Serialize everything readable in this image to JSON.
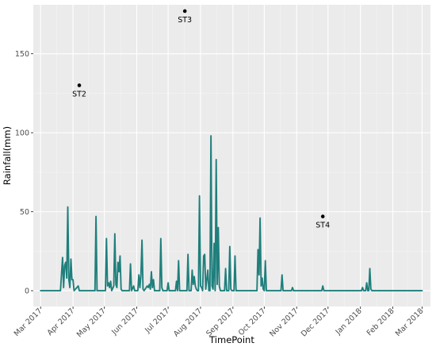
{
  "chart_data": {
    "type": "line",
    "xlabel": "TimePoint",
    "ylabel": "Rainfall(mm)",
    "ylim": [
      -10,
      181
    ],
    "yticks": [
      0,
      50,
      100,
      150
    ],
    "x_range": [
      "2017-02-22",
      "2018-03-09"
    ],
    "xticks": [
      {
        "date": "2017-03-01",
        "label": "Mar 2017"
      },
      {
        "date": "2017-04-01",
        "label": "Apr 2017"
      },
      {
        "date": "2017-05-01",
        "label": "May 2017"
      },
      {
        "date": "2017-06-01",
        "label": "Jun 2017"
      },
      {
        "date": "2017-07-01",
        "label": "Jul 2017"
      },
      {
        "date": "2017-08-01",
        "label": "Aug 2017"
      },
      {
        "date": "2017-09-01",
        "label": "Sep 2017"
      },
      {
        "date": "2017-10-01",
        "label": "Oct 2017"
      },
      {
        "date": "2017-11-01",
        "label": "Nov 2017"
      },
      {
        "date": "2017-12-01",
        "label": "Dec 2017"
      },
      {
        "date": "2018-01-01",
        "label": "Jan 2018"
      },
      {
        "date": "2018-02-01",
        "label": "Feb 2018"
      },
      {
        "date": "2018-03-01",
        "label": "Mar 2018"
      }
    ],
    "grid": true,
    "series": [
      {
        "color": "#1f7f7c",
        "points": [
          [
            "2017-03-01",
            0
          ],
          [
            "2017-03-20",
            0
          ],
          [
            "2017-03-22",
            21
          ],
          [
            "2017-03-23",
            2
          ],
          [
            "2017-03-24",
            16
          ],
          [
            "2017-03-25",
            18
          ],
          [
            "2017-03-26",
            8
          ],
          [
            "2017-03-27",
            53
          ],
          [
            "2017-03-28",
            7
          ],
          [
            "2017-03-29",
            2
          ],
          [
            "2017-03-30",
            20
          ],
          [
            "2017-03-31",
            7
          ],
          [
            "2017-04-01",
            7
          ],
          [
            "2017-04-02",
            0
          ],
          [
            "2017-04-06",
            3
          ],
          [
            "2017-04-07",
            0
          ],
          [
            "2017-04-22",
            0
          ],
          [
            "2017-04-23",
            47
          ],
          [
            "2017-04-24",
            0
          ],
          [
            "2017-05-02",
            0
          ],
          [
            "2017-05-03",
            33
          ],
          [
            "2017-05-04",
            3
          ],
          [
            "2017-05-05",
            5
          ],
          [
            "2017-05-06",
            2
          ],
          [
            "2017-05-07",
            6
          ],
          [
            "2017-05-08",
            0
          ],
          [
            "2017-05-10",
            3
          ],
          [
            "2017-05-11",
            36
          ],
          [
            "2017-05-12",
            4
          ],
          [
            "2017-05-13",
            2
          ],
          [
            "2017-05-14",
            18
          ],
          [
            "2017-05-15",
            12
          ],
          [
            "2017-05-16",
            22
          ],
          [
            "2017-05-17",
            1
          ],
          [
            "2017-05-18",
            0
          ],
          [
            "2017-05-25",
            0
          ],
          [
            "2017-05-26",
            17
          ],
          [
            "2017-05-27",
            0
          ],
          [
            "2017-05-29",
            3
          ],
          [
            "2017-05-30",
            0
          ],
          [
            "2017-06-02",
            0
          ],
          [
            "2017-06-03",
            10
          ],
          [
            "2017-06-04",
            2
          ],
          [
            "2017-06-05",
            10
          ],
          [
            "2017-06-06",
            32
          ],
          [
            "2017-06-07",
            1
          ],
          [
            "2017-06-08",
            0
          ],
          [
            "2017-06-11",
            3
          ],
          [
            "2017-06-12",
            2
          ],
          [
            "2017-06-13",
            4
          ],
          [
            "2017-06-14",
            1
          ],
          [
            "2017-06-15",
            12
          ],
          [
            "2017-06-16",
            2
          ],
          [
            "2017-06-17",
            7
          ],
          [
            "2017-06-18",
            0
          ],
          [
            "2017-06-23",
            0
          ],
          [
            "2017-06-24",
            33
          ],
          [
            "2017-06-25",
            2
          ],
          [
            "2017-06-26",
            0
          ],
          [
            "2017-06-30",
            0
          ],
          [
            "2017-07-01",
            5
          ],
          [
            "2017-07-02",
            0
          ],
          [
            "2017-07-08",
            0
          ],
          [
            "2017-07-09",
            6
          ],
          [
            "2017-07-10",
            0
          ],
          [
            "2017-07-11",
            19
          ],
          [
            "2017-07-12",
            0
          ],
          [
            "2017-07-19",
            0
          ],
          [
            "2017-07-20",
            23
          ],
          [
            "2017-07-21",
            0
          ],
          [
            "2017-07-23",
            0
          ],
          [
            "2017-07-24",
            13
          ],
          [
            "2017-07-25",
            4
          ],
          [
            "2017-07-26",
            9
          ],
          [
            "2017-07-27",
            3
          ],
          [
            "2017-07-28",
            1
          ],
          [
            "2017-07-29",
            0
          ],
          [
            "2017-07-30",
            0
          ],
          [
            "2017-07-31",
            60
          ],
          [
            "2017-08-01",
            3
          ],
          [
            "2017-08-02",
            2
          ],
          [
            "2017-08-03",
            0
          ],
          [
            "2017-08-04",
            22
          ],
          [
            "2017-08-05",
            23
          ],
          [
            "2017-08-06",
            1
          ],
          [
            "2017-08-08",
            13
          ],
          [
            "2017-08-09",
            0
          ],
          [
            "2017-08-10",
            0
          ],
          [
            "2017-08-11",
            98
          ],
          [
            "2017-08-12",
            3
          ],
          [
            "2017-08-13",
            1
          ],
          [
            "2017-08-14",
            30
          ],
          [
            "2017-08-15",
            0
          ],
          [
            "2017-08-16",
            83
          ],
          [
            "2017-08-17",
            4
          ],
          [
            "2017-08-18",
            40
          ],
          [
            "2017-08-19",
            3
          ],
          [
            "2017-08-20",
            0
          ],
          [
            "2017-08-24",
            0
          ],
          [
            "2017-08-25",
            14
          ],
          [
            "2017-08-26",
            0
          ],
          [
            "2017-08-28",
            0
          ],
          [
            "2017-08-29",
            28
          ],
          [
            "2017-08-30",
            1
          ],
          [
            "2017-08-31",
            0
          ],
          [
            "2017-09-02",
            0
          ],
          [
            "2017-09-03",
            22
          ],
          [
            "2017-09-04",
            0
          ],
          [
            "2017-09-24",
            0
          ],
          [
            "2017-09-25",
            26
          ],
          [
            "2017-09-26",
            10
          ],
          [
            "2017-09-27",
            46
          ],
          [
            "2017-09-28",
            3
          ],
          [
            "2017-09-29",
            8
          ],
          [
            "2017-09-30",
            1
          ],
          [
            "2017-10-01",
            0
          ],
          [
            "2017-10-02",
            19
          ],
          [
            "2017-10-03",
            0
          ],
          [
            "2017-10-17",
            0
          ],
          [
            "2017-10-18",
            10
          ],
          [
            "2017-10-19",
            0
          ],
          [
            "2017-10-27",
            0
          ],
          [
            "2017-10-28",
            2
          ],
          [
            "2017-10-29",
            0
          ],
          [
            "2017-11-25",
            0
          ],
          [
            "2017-11-26",
            3
          ],
          [
            "2017-11-27",
            0
          ],
          [
            "2018-01-02",
            0
          ],
          [
            "2018-01-03",
            2
          ],
          [
            "2018-01-04",
            0
          ],
          [
            "2018-01-06",
            0
          ],
          [
            "2018-01-07",
            5
          ],
          [
            "2018-01-08",
            0
          ],
          [
            "2018-01-09",
            0
          ],
          [
            "2018-01-10",
            14
          ],
          [
            "2018-01-11",
            1
          ],
          [
            "2018-01-12",
            0
          ],
          [
            "2018-03-01",
            0
          ]
        ]
      }
    ],
    "annotations": [
      {
        "label": "ST2",
        "date": "2017-04-07",
        "value": 130
      },
      {
        "label": "ST3",
        "date": "2017-07-17",
        "value": 177
      },
      {
        "label": "ST4",
        "date": "2017-11-26",
        "value": 47
      }
    ]
  }
}
